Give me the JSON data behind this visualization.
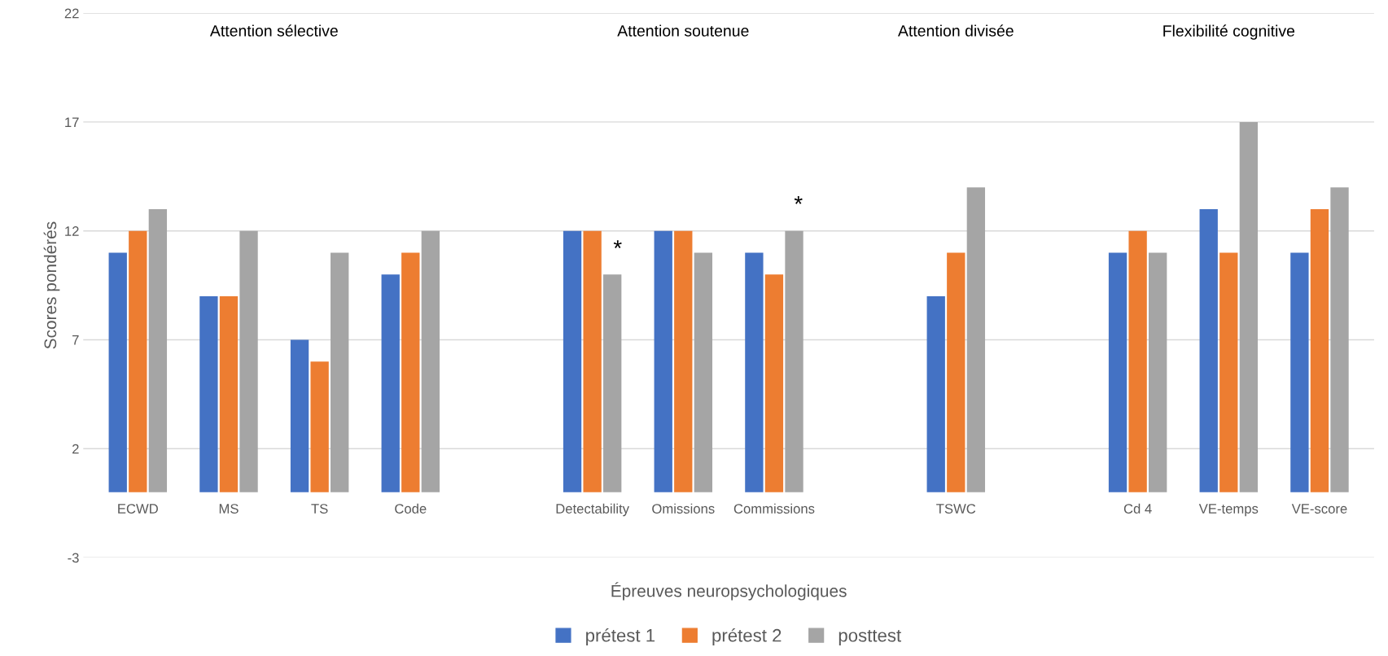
{
  "chart_data": {
    "type": "bar",
    "xlabel": "Épreuves neuropsychologiques",
    "ylabel": "Scores pondérés",
    "categories": [
      "ECWD",
      "MS",
      "TS",
      "Code",
      null,
      "Detectability",
      "Omissions",
      "Commissions",
      null,
      "TSWC",
      null,
      "Cd 4",
      "VE-temps",
      "VE-score"
    ],
    "series": [
      {
        "name": "prétest 1",
        "color": "#4472c4",
        "values": [
          11,
          9,
          7,
          10,
          null,
          12,
          12,
          11,
          null,
          9,
          null,
          11,
          13,
          11
        ]
      },
      {
        "name": "prétest 2",
        "color": "#ed7d31",
        "values": [
          12,
          9,
          6,
          11,
          null,
          12,
          12,
          10,
          null,
          11,
          null,
          12,
          11,
          13
        ]
      },
      {
        "name": "posttest",
        "color": "#a5a5a5",
        "values": [
          13,
          12,
          11,
          12,
          null,
          10,
          11,
          12,
          null,
          14,
          null,
          11,
          17,
          14
        ]
      }
    ],
    "ylim": [
      -3,
      22
    ],
    "yticks": [
      -3,
      2,
      7,
      12,
      17,
      22
    ],
    "grid": "y",
    "legend": "bottom",
    "annotations": [
      "Attention sélective",
      "Attention soutenue",
      "Attention divisée",
      "Flexibilité cognitive",
      "*",
      "*"
    ]
  }
}
